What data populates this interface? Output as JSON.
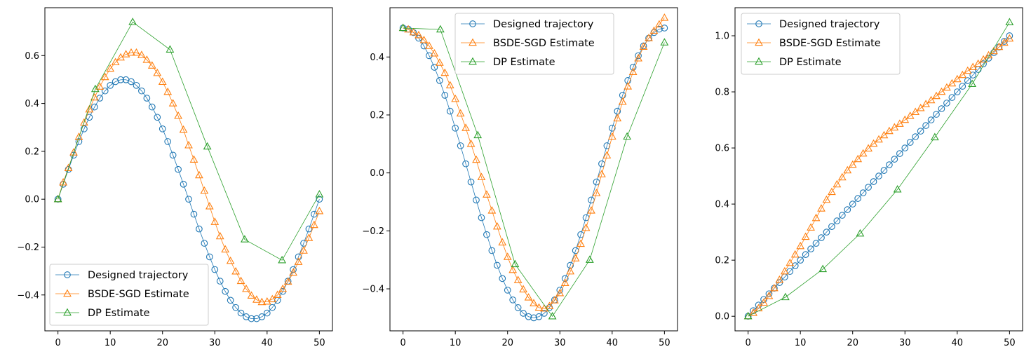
{
  "colors": {
    "designed": "#1f77b4",
    "bsde": "#ff7f0e",
    "dp": "#2ca02c"
  },
  "chart_data": [
    {
      "type": "line",
      "title": "",
      "xlabel": "",
      "ylabel": "",
      "xlim": [
        -2.5,
        52.5
      ],
      "ylim": [
        -0.55,
        0.8
      ],
      "x_ticks": [
        0,
        10,
        20,
        30,
        40,
        50
      ],
      "y_ticks": [
        -0.4,
        -0.2,
        0.0,
        0.2,
        0.4,
        0.6
      ],
      "x_tick_labels": [
        "0",
        "10",
        "20",
        "30",
        "40",
        "50"
      ],
      "y_tick_labels": [
        "−0.4",
        "−0.2",
        "0.0",
        "0.2",
        "0.4",
        "0.6"
      ],
      "legend_position": "lower-left",
      "series": [
        {
          "key": "designed",
          "name": "Designed trajectory",
          "marker": "circle",
          "formula": "0.5*sin(2*pi*t/50)",
          "x_start": 0,
          "x_end": 50,
          "count": 51
        },
        {
          "key": "bsde",
          "name": "BSDE-SGD Estimate",
          "marker": "triangle",
          "x": [
            0,
            1,
            2,
            3,
            4,
            5,
            6,
            7,
            8,
            9,
            10,
            11,
            12,
            13,
            14,
            15,
            16,
            17,
            18,
            19,
            20,
            21,
            22,
            23,
            24,
            25,
            26,
            27,
            28,
            29,
            30,
            31,
            32,
            33,
            34,
            35,
            36,
            37,
            38,
            39,
            40,
            41,
            42,
            43,
            44,
            45,
            46,
            47,
            48,
            49,
            50
          ],
          "values": [
            0.0,
            0.07,
            0.13,
            0.195,
            0.26,
            0.32,
            0.375,
            0.425,
            0.47,
            0.51,
            0.545,
            0.572,
            0.592,
            0.605,
            0.612,
            0.612,
            0.602,
            0.582,
            0.558,
            0.527,
            0.49,
            0.448,
            0.4,
            0.348,
            0.29,
            0.225,
            0.165,
            0.1,
            0.035,
            -0.03,
            -0.095,
            -0.155,
            -0.21,
            -0.258,
            -0.302,
            -0.342,
            -0.375,
            -0.403,
            -0.42,
            -0.43,
            -0.428,
            -0.418,
            -0.4,
            -0.375,
            -0.345,
            -0.307,
            -0.262,
            -0.215,
            -0.162,
            -0.108,
            -0.05
          ]
        },
        {
          "key": "dp",
          "name": "DP Estimate",
          "marker": "triangle",
          "x": [
            0,
            7.14,
            14.29,
            21.43,
            28.57,
            35.71,
            42.86,
            50
          ],
          "values": [
            0.0,
            0.46,
            0.74,
            0.625,
            0.22,
            -0.168,
            -0.255,
            0.02
          ]
        }
      ]
    },
    {
      "type": "line",
      "title": "",
      "xlabel": "",
      "ylabel": "",
      "xlim": [
        -2.5,
        52.5
      ],
      "ylim": [
        -0.545,
        0.57
      ],
      "x_ticks": [
        0,
        10,
        20,
        30,
        40,
        50
      ],
      "y_ticks": [
        -0.4,
        -0.2,
        0.0,
        0.2,
        0.4
      ],
      "x_tick_labels": [
        "0",
        "10",
        "20",
        "30",
        "40",
        "50"
      ],
      "y_tick_labels": [
        "−0.4",
        "−0.2",
        "0.0",
        "0.2",
        "0.4"
      ],
      "legend_position": "upper-center",
      "series": [
        {
          "key": "designed",
          "name": "Designed trajectory",
          "marker": "circle",
          "formula": "0.5*cos(2*pi*t/50)",
          "x_start": 0,
          "x_end": 50,
          "count": 51
        },
        {
          "key": "bsde",
          "name": "BSDE-SGD Estimate",
          "marker": "triangle",
          "x": [
            0,
            1,
            2,
            3,
            4,
            5,
            6,
            7,
            8,
            9,
            10,
            11,
            12,
            13,
            14,
            15,
            16,
            17,
            18,
            19,
            20,
            21,
            22,
            23,
            24,
            25,
            26,
            27,
            28,
            29,
            30,
            31,
            32,
            33,
            34,
            35,
            36,
            37,
            38,
            39,
            40,
            41,
            42,
            43,
            44,
            45,
            46,
            47,
            48,
            49,
            50
          ],
          "values": [
            0.5,
            0.495,
            0.485,
            0.475,
            0.458,
            0.438,
            0.412,
            0.38,
            0.345,
            0.302,
            0.255,
            0.205,
            0.155,
            0.1,
            0.045,
            -0.015,
            -0.075,
            -0.13,
            -0.185,
            -0.24,
            -0.29,
            -0.335,
            -0.37,
            -0.402,
            -0.43,
            -0.45,
            -0.465,
            -0.468,
            -0.46,
            -0.44,
            -0.415,
            -0.38,
            -0.34,
            -0.295,
            -0.245,
            -0.19,
            -0.13,
            -0.07,
            -0.005,
            0.06,
            0.125,
            0.188,
            0.245,
            0.298,
            0.348,
            0.395,
            0.435,
            0.465,
            0.49,
            0.512,
            0.535
          ]
        },
        {
          "key": "dp",
          "name": "DP Estimate",
          "marker": "triangle",
          "x": [
            0,
            7.14,
            14.29,
            21.43,
            28.57,
            35.71,
            42.86,
            50
          ],
          "values": [
            0.5,
            0.495,
            0.13,
            -0.315,
            -0.495,
            -0.3,
            0.125,
            0.45
          ]
        }
      ]
    },
    {
      "type": "line",
      "title": "",
      "xlabel": "",
      "ylabel": "",
      "xlim": [
        -2.5,
        52.5
      ],
      "ylim": [
        -0.052,
        1.1
      ],
      "x_ticks": [
        0,
        10,
        20,
        30,
        40,
        50
      ],
      "y_ticks": [
        0.0,
        0.2,
        0.4,
        0.6,
        0.8,
        1.0
      ],
      "x_tick_labels": [
        "0",
        "10",
        "20",
        "30",
        "40",
        "50"
      ],
      "y_tick_labels": [
        "0.0",
        "0.2",
        "0.4",
        "0.6",
        "0.8",
        "1.0"
      ],
      "legend_position": "upper-left",
      "series": [
        {
          "key": "designed",
          "name": "Designed trajectory",
          "marker": "circle",
          "formula": "t/50",
          "x_start": 0,
          "x_end": 50,
          "count": 51
        },
        {
          "key": "bsde",
          "name": "BSDE-SGD Estimate",
          "marker": "triangle",
          "x": [
            0,
            1,
            2,
            3,
            4,
            5,
            6,
            7,
            8,
            9,
            10,
            11,
            12,
            13,
            14,
            15,
            16,
            17,
            18,
            19,
            20,
            21,
            22,
            23,
            24,
            25,
            26,
            27,
            28,
            29,
            30,
            31,
            32,
            33,
            34,
            35,
            36,
            37,
            38,
            39,
            40,
            41,
            42,
            43,
            44,
            45,
            46,
            47,
            48,
            49,
            50
          ],
          "values": [
            0.0,
            0.012,
            0.028,
            0.048,
            0.072,
            0.1,
            0.13,
            0.16,
            0.19,
            0.22,
            0.25,
            0.283,
            0.316,
            0.35,
            0.384,
            0.415,
            0.443,
            0.47,
            0.495,
            0.52,
            0.54,
            0.56,
            0.58,
            0.598,
            0.615,
            0.63,
            0.645,
            0.66,
            0.673,
            0.686,
            0.7,
            0.714,
            0.728,
            0.742,
            0.756,
            0.77,
            0.785,
            0.8,
            0.815,
            0.83,
            0.845,
            0.86,
            0.875,
            0.888,
            0.9,
            0.915,
            0.93,
            0.945,
            0.96,
            0.975,
            0.99
          ]
        },
        {
          "key": "dp",
          "name": "DP Estimate",
          "marker": "triangle",
          "x": [
            0,
            7.14,
            14.29,
            21.43,
            28.57,
            35.71,
            42.86,
            50
          ],
          "values": [
            0.0,
            0.068,
            0.168,
            0.295,
            0.452,
            0.638,
            0.828,
            1.048
          ]
        }
      ]
    }
  ]
}
